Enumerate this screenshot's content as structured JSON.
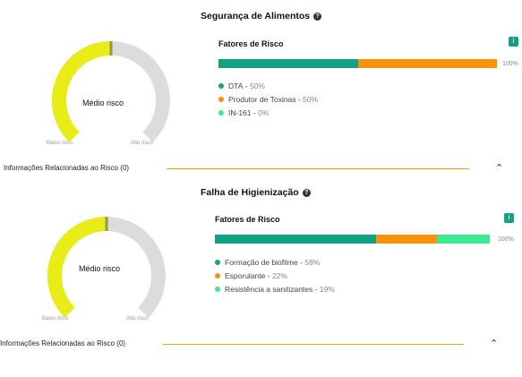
{
  "sections": [
    {
      "title": "Segurança de Alimentos",
      "gauge": {
        "level": 0.5,
        "label": "Médio risco",
        "low": "Baixo risco",
        "high": "Alto risco"
      },
      "factors_title": "Fatores de Risco",
      "total_label": "100%",
      "factors": [
        {
          "name": "DTA",
          "value": "50%",
          "fraction": 0.5,
          "color": "#14a085"
        },
        {
          "name": "Produtor de Toxinas",
          "value": "50%",
          "fraction": 0.5,
          "color": "#f7920c"
        },
        {
          "name": "IN-161",
          "value": "0%",
          "fraction": 0.0,
          "color": "#3ee896"
        }
      ],
      "related": "Informações Relacionadas ao Risco (0)"
    },
    {
      "title": "Falha de Higienização",
      "gauge": {
        "level": 0.5,
        "label": "Médio risco",
        "low": "Baixo risco",
        "high": "Alto risco"
      },
      "factors_title": "Fatores de Risco",
      "total_label": "100%",
      "factors": [
        {
          "name": "Formação de biofilme",
          "value": "58%",
          "fraction": 0.58,
          "color": "#14a085"
        },
        {
          "name": "Esporulante",
          "value": "22%",
          "fraction": 0.22,
          "color": "#f7920c"
        },
        {
          "name": "Resistência a sanitizantes",
          "value": "19%",
          "fraction": 0.19,
          "color": "#3ee896"
        }
      ],
      "related": "Informações Relacionadas ao Risco (0)"
    }
  ],
  "colors": {
    "gauge_fill": "#e9ec16",
    "gauge_track": "#dcdcdc",
    "gauge_marker": "#8a9a4a",
    "accent_line": "#f0a50a"
  },
  "icons": {
    "help": "question-circle-icon",
    "info": "info-icon",
    "collapse": "chevron-up-icon"
  }
}
